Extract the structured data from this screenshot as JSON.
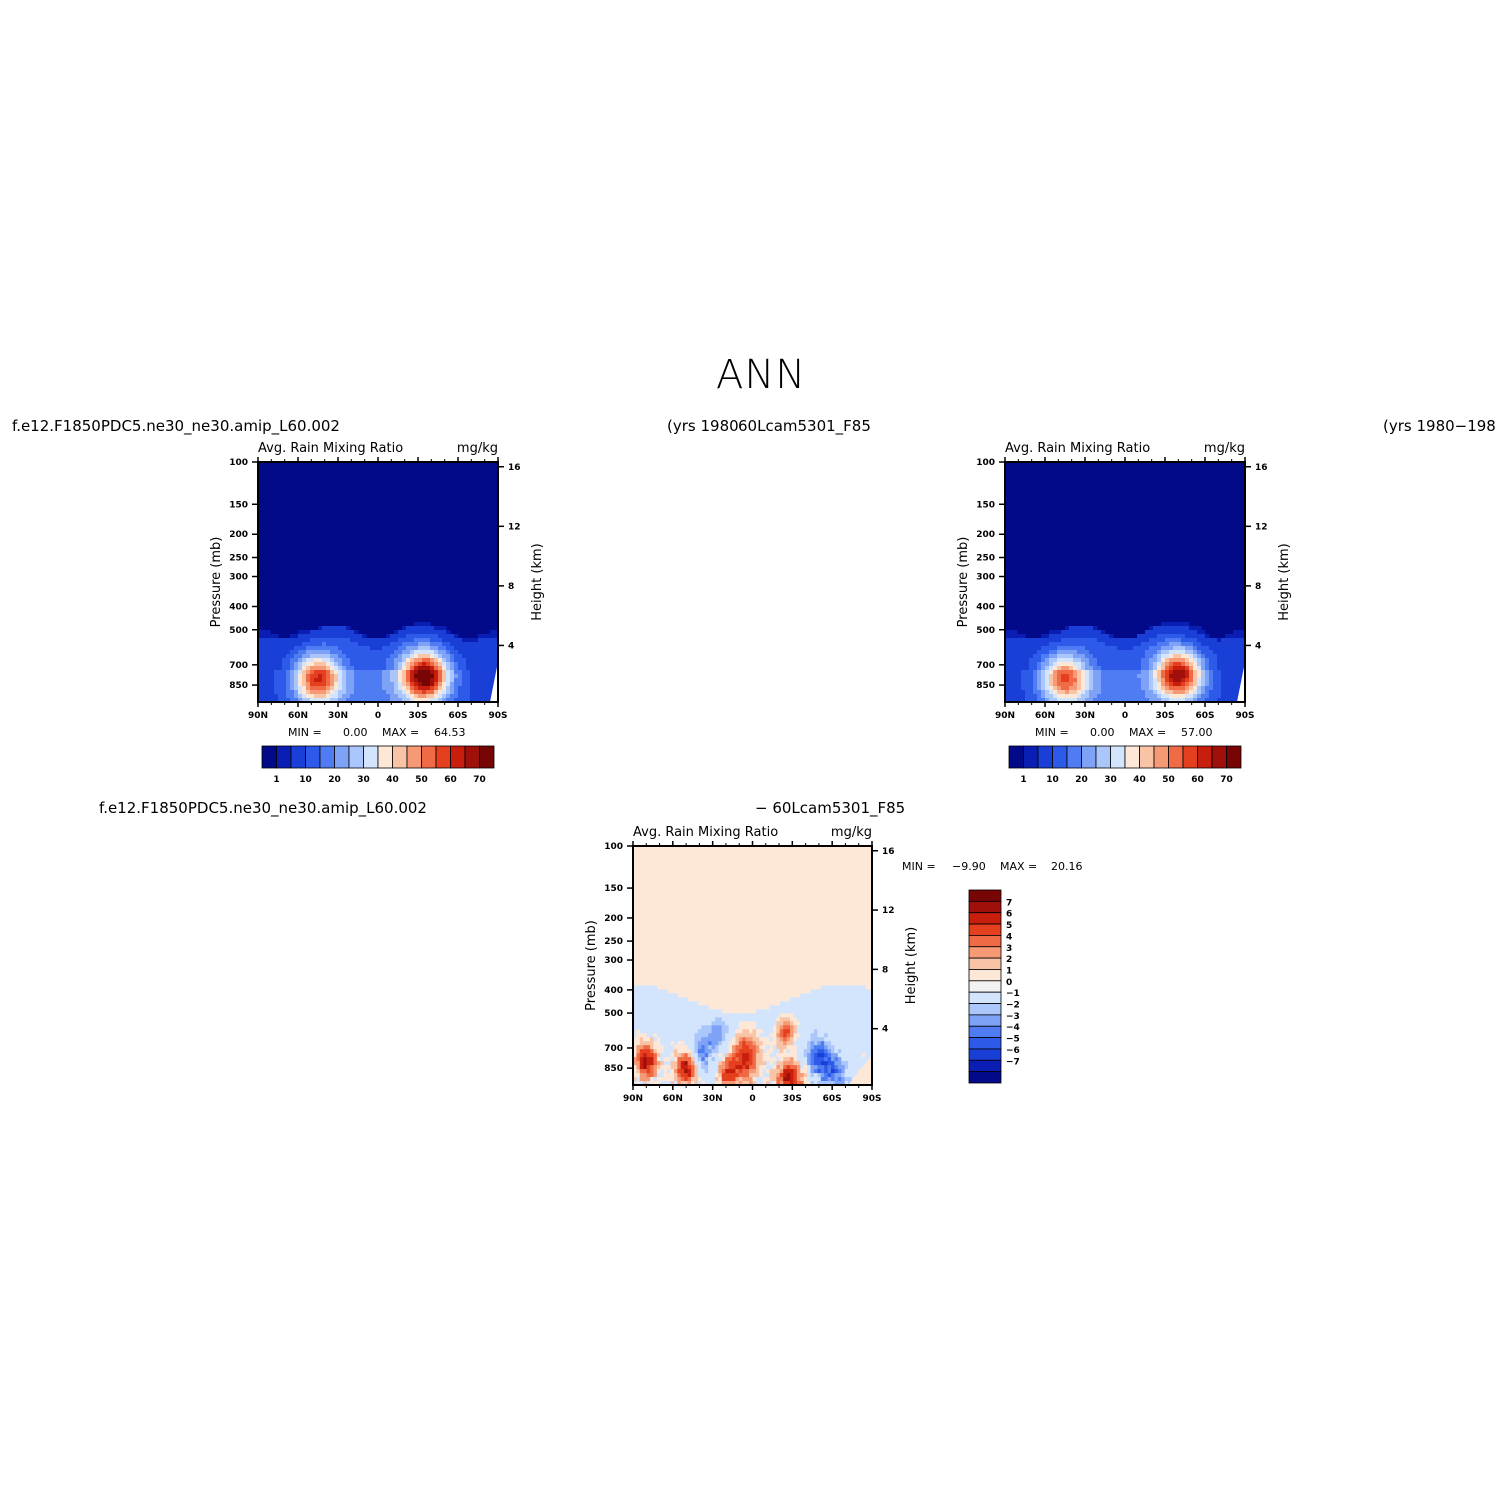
{
  "page": {
    "title": "ANN"
  },
  "case_labels": {
    "top_left": "f.e12.F1850PDC5.ne30_ne30.amip_L60.002",
    "top_left_years": "(yrs 1980",
    "top_right": "60Lcam5301_F85",
    "top_right_years": "(yrs 1980−198",
    "bottom_left": "f.e12.F1850PDC5.ne30_ne30.amip_L60.002",
    "bottom_right": "− 60Lcam5301_F85"
  },
  "colors": {
    "abs_palette": [
      "#020a8a",
      "#0a1eb4",
      "#1a3fd6",
      "#2d5ae8",
      "#4f7cf2",
      "#7ea3f6",
      "#aac6fa",
      "#d3e4fd",
      "#fde8d8",
      "#f9c4a6",
      "#f59a75",
      "#ef6a45",
      "#e4401f",
      "#c81e0e",
      "#a0100a",
      "#780505"
    ],
    "diff_palette": [
      "#020a8a",
      "#0a1eb4",
      "#1a3fd6",
      "#2d5ae8",
      "#4f7cf2",
      "#7ea3f6",
      "#aac6fa",
      "#d3e4fd",
      "#f2f2f2",
      "#fde8d8",
      "#f9c4a6",
      "#f59a75",
      "#ef6a45",
      "#e4401f",
      "#c81e0e",
      "#a0100a",
      "#780505"
    ]
  },
  "chart_data": [
    {
      "id": "case1",
      "type": "heatmap",
      "title": "Avg. Rain Mixing Ratio",
      "units": "mg/kg",
      "ylabel": "Pressure (mb)",
      "ylabel_right": "Height (km)",
      "x_ticks": [
        "90N",
        "60N",
        "30N",
        "0",
        "30S",
        "60S",
        "90S"
      ],
      "x_range": [
        90,
        -90
      ],
      "y_ticks": [
        "100",
        "150",
        "200",
        "250",
        "300",
        "400",
        "500",
        "700",
        "850"
      ],
      "y_values": [
        100,
        150,
        200,
        250,
        300,
        400,
        500,
        700,
        850
      ],
      "y_range": [
        100,
        1000
      ],
      "y_scale": "log",
      "right_ticks": [
        "16",
        "12",
        "8",
        "4"
      ],
      "right_values": [
        16,
        12,
        8,
        4
      ],
      "stats": {
        "min_label": "MIN =",
        "min": "0.00",
        "max_label": "MAX =",
        "max": "64.53"
      },
      "colorbar_labels": [
        "1",
        "10",
        "20",
        "30",
        "40",
        "50",
        "60",
        "70"
      ],
      "maxima": [
        {
          "lat": -35,
          "p": 780,
          "value": 64.53
        },
        {
          "lat": 45,
          "p": 800,
          "value": 48
        }
      ]
    },
    {
      "id": "case2",
      "type": "heatmap",
      "title": "Avg. Rain Mixing Ratio",
      "units": "mg/kg",
      "ylabel": "Pressure (mb)",
      "ylabel_right": "Height (km)",
      "x_ticks": [
        "90N",
        "60N",
        "30N",
        "0",
        "30S",
        "60S",
        "90S"
      ],
      "x_range": [
        90,
        -90
      ],
      "y_ticks": [
        "100",
        "150",
        "200",
        "250",
        "300",
        "400",
        "500",
        "700",
        "850"
      ],
      "y_values": [
        100,
        150,
        200,
        250,
        300,
        400,
        500,
        700,
        850
      ],
      "y_range": [
        100,
        1000
      ],
      "y_scale": "log",
      "right_ticks": [
        "16",
        "12",
        "8",
        "4"
      ],
      "right_values": [
        16,
        12,
        8,
        4
      ],
      "stats": {
        "min_label": "MIN =",
        "min": "0.00",
        "max_label": "MAX =",
        "max": "57.00"
      },
      "colorbar_labels": [
        "1",
        "10",
        "20",
        "30",
        "40",
        "50",
        "60",
        "70"
      ],
      "maxima": [
        {
          "lat": -40,
          "p": 770,
          "value": 57.0
        },
        {
          "lat": 45,
          "p": 800,
          "value": 44
        }
      ]
    },
    {
      "id": "diff",
      "type": "heatmap",
      "title": "Avg. Rain Mixing Ratio",
      "units": "mg/kg",
      "ylabel": "Pressure (mb)",
      "ylabel_right": "Height (km)",
      "x_ticks": [
        "90N",
        "60N",
        "30N",
        "0",
        "30S",
        "60S",
        "90S"
      ],
      "x_range": [
        90,
        -90
      ],
      "y_ticks": [
        "100",
        "150",
        "200",
        "250",
        "300",
        "400",
        "500",
        "700",
        "850"
      ],
      "y_values": [
        100,
        150,
        200,
        250,
        300,
        400,
        500,
        700,
        850
      ],
      "y_range": [
        100,
        1000
      ],
      "y_scale": "log",
      "right_ticks": [
        "16",
        "12",
        "8",
        "4"
      ],
      "right_values": [
        16,
        12,
        8,
        4
      ],
      "stats": {
        "min_label": "MIN =",
        "min": "−9.90",
        "max_label": "MAX =",
        "max": "20.16"
      },
      "colorbar_labels": [
        "7",
        "6",
        "5",
        "4",
        "3",
        "2",
        "1",
        "0",
        "−1",
        "−2",
        "−3",
        "−4",
        "−5",
        "−6",
        "−7"
      ]
    }
  ]
}
